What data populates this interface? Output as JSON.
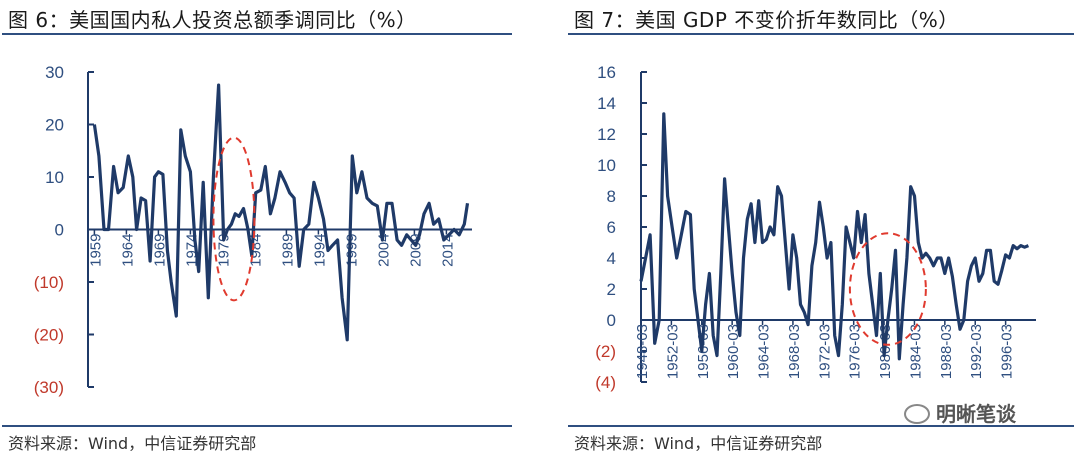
{
  "chart_data": [
    {
      "type": "line",
      "title": "图 6：美国国内私人投资总额季调同比（%）",
      "source": "资料来源：Wind，中信证券研究部",
      "ylim": [
        -30,
        30
      ],
      "yticks": [
        30,
        20,
        10,
        0,
        -10,
        -20,
        -30
      ],
      "ytick_labels": [
        "30",
        "20",
        "10",
        "0",
        "(10)",
        "(20)",
        "(30)"
      ],
      "xlim": [
        1958,
        2018
      ],
      "xticks": [
        1959,
        1964,
        1969,
        1974,
        1979,
        1984,
        1989,
        1994,
        1999,
        2004,
        2009,
        2014
      ],
      "xtick_labels": [
        "1959",
        "1964",
        "1969",
        "1974",
        "1979",
        "1984",
        "1989",
        "1994",
        "1999",
        "2004",
        "2009",
        "2014"
      ],
      "grid": false,
      "colors": {
        "line": "#1f3a68",
        "negative_label": "#c0392b",
        "annotation": "#e03a2e"
      },
      "annotation": {
        "type": "dashed-ellipse",
        "cx": 1980.8,
        "cy": 2,
        "rx": 3.2,
        "ry": 15.5
      },
      "series": [
        {
          "x": [
            1959,
            1959.7,
            1960.5,
            1961.2,
            1962,
            1962.7,
            1963.5,
            1964.3,
            1965,
            1965.6,
            1966.3,
            1967,
            1967.7,
            1968.4,
            1969,
            1969.7,
            1970.4,
            1971,
            1971.8,
            1972.5,
            1973.2,
            1974,
            1974.7,
            1975.3,
            1976,
            1976.8,
            1977.6,
            1978.4,
            1979.2,
            1979.8,
            1980.4,
            1981,
            1981.6,
            1982.3,
            1983,
            1983.6,
            1984.2,
            1985,
            1985.7,
            1986.5,
            1987.2,
            1988,
            1988.8,
            1989.5,
            1990.2,
            1991,
            1991.7,
            1992.5,
            1993.3,
            1994,
            1994.8,
            1995.5,
            1996.2,
            1997,
            1997.7,
            1998.5,
            1999.3,
            2000,
            2000.8,
            2001.6,
            2002.4,
            2003.2,
            2004,
            2004.7,
            2005.5,
            2006.3,
            2007,
            2007.8,
            2008.5,
            2009.2,
            2009.8,
            2010.5,
            2011.3,
            2012,
            2012.8,
            2013.6,
            2014.4,
            2015.2,
            2016,
            2016.8,
            2017.3
          ],
          "values": [
            20,
            14,
            0,
            0,
            12,
            7,
            8,
            14,
            10,
            0,
            6,
            5.5,
            -6,
            10,
            11,
            10.5,
            -4,
            -10,
            -16.5,
            19,
            14,
            11,
            -2,
            -8,
            9,
            -13,
            10,
            27.5,
            -2,
            0,
            1,
            3,
            2.5,
            4,
            0,
            -5,
            7,
            7.5,
            12,
            3,
            6,
            11,
            9,
            7,
            6,
            -7,
            0,
            1,
            9,
            6,
            2,
            -4,
            -3,
            -2,
            -13,
            -21,
            14,
            7,
            11,
            6,
            5,
            4.5,
            -2,
            5,
            5,
            -2,
            -3,
            -1,
            -2,
            -3,
            -1,
            3,
            5,
            1,
            2,
            -2,
            -1,
            0,
            -1,
            1,
            5
          ]
        }
      ]
    },
    {
      "type": "line",
      "title": "图 7：美国 GDP 不变价折年数同比（%）",
      "source": "资料来源：Wind，中信证券研究部",
      "ylim": [
        -4,
        16
      ],
      "yticks": [
        16,
        14,
        12,
        10,
        8,
        6,
        4,
        2,
        0,
        -2,
        -4
      ],
      "ytick_labels": [
        "16",
        "14",
        "12",
        "10",
        "8",
        "6",
        "4",
        "2",
        "0",
        "(2)",
        "(4)"
      ],
      "xlim": [
        1948,
        2000
      ],
      "xticks": [
        1948,
        1952,
        1956,
        1960,
        1964,
        1968,
        1972,
        1976,
        1980,
        1984,
        1988,
        1992,
        1996
      ],
      "xtick_labels": [
        "1948-03",
        "1952-03",
        "1956-03",
        "1960-03",
        "1964-03",
        "1968-03",
        "1972-03",
        "1976-03",
        "1980-03",
        "1984-03",
        "1988-03",
        "1992-03",
        "1996-03"
      ],
      "grid": false,
      "colors": {
        "line": "#1f3a68",
        "negative_label": "#c0392b",
        "annotation": "#e03a2e"
      },
      "annotation": {
        "type": "dashed-ellipse",
        "cx": 1980.5,
        "cy": 2,
        "rx": 5,
        "ry": 3.6
      },
      "series": [
        {
          "x": [
            1948,
            1948.6,
            1949.2,
            1949.8,
            1950.4,
            1951,
            1951.5,
            1952.1,
            1952.7,
            1953.3,
            1953.9,
            1954.5,
            1955,
            1955.5,
            1956,
            1956.5,
            1957,
            1957.5,
            1958,
            1958.5,
            1959,
            1959.5,
            1960,
            1960.5,
            1961,
            1961.5,
            1962,
            1962.5,
            1963,
            1963.5,
            1964,
            1964.5,
            1965,
            1965.5,
            1966,
            1966.5,
            1967,
            1967.5,
            1968,
            1968.5,
            1969,
            1969.5,
            1970,
            1970.5,
            1971,
            1971.5,
            1972,
            1972.5,
            1973,
            1973.5,
            1974,
            1974.5,
            1975,
            1975.5,
            1976,
            1976.5,
            1977,
            1977.5,
            1978,
            1978.5,
            1979,
            1979.5,
            1980,
            1980.5,
            1981,
            1981.5,
            1982,
            1982.5,
            1983,
            1983.5,
            1984,
            1984.5,
            1985,
            1985.5,
            1986,
            1986.5,
            1987,
            1987.5,
            1988,
            1988.5,
            1989,
            1989.5,
            1990,
            1990.5,
            1991,
            1991.5,
            1992,
            1992.5,
            1993,
            1993.5,
            1994,
            1994.5,
            1995,
            1995.5,
            1996,
            1996.5,
            1997,
            1997.5,
            1998,
            1998.5,
            1999
          ],
          "values": [
            2.5,
            4,
            5.5,
            -1.5,
            0,
            13.3,
            8,
            6,
            4,
            5.5,
            7,
            6.8,
            2,
            0,
            -2,
            1,
            3,
            -1,
            -2.3,
            3,
            9.1,
            6,
            3,
            0.5,
            -1,
            4,
            6.5,
            7.5,
            5,
            7.7,
            5,
            5.2,
            6,
            5.5,
            8.6,
            8,
            5,
            2,
            5.5,
            4,
            1,
            0.5,
            -0.3,
            3.5,
            5,
            7.6,
            6,
            4,
            5,
            -1,
            -2.3,
            1,
            6,
            5,
            4,
            7,
            5,
            6.8,
            3,
            1,
            -1,
            3,
            -2.3,
            0,
            2,
            4.5,
            -2.5,
            1,
            4,
            8.6,
            8,
            5,
            4,
            4.3,
            4,
            3.5,
            4,
            4,
            3,
            4,
            2.8,
            1,
            -0.6,
            0,
            2.5,
            3.5,
            4,
            2.5,
            3,
            4.5,
            4.5,
            2.5,
            2.3,
            3.2,
            4.2,
            4,
            4.8,
            4.6,
            4.8,
            4.7,
            4.8
          ]
        }
      ]
    }
  ],
  "watermark": {
    "text": "明晰笔谈",
    "icon": "wechat-icon"
  }
}
